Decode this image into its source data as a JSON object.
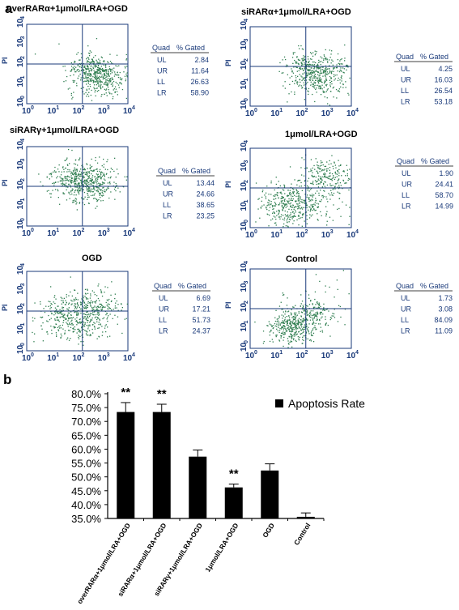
{
  "panel_a_label": "a",
  "panel_b_label": "b",
  "flow_axis": {
    "y_label": "PI",
    "tick_base": "10",
    "tick_exponents": [
      "0",
      "1",
      "2",
      "3",
      "4"
    ]
  },
  "quad_table_header": {
    "quad": "Quad",
    "gated": "% Gated"
  },
  "flow_panels": [
    {
      "title": "overRARα+1μmol/LRA+OGD",
      "rows": [
        {
          "q": "UL",
          "v": "2.84"
        },
        {
          "q": "UR",
          "v": "11.64"
        },
        {
          "q": "LL",
          "v": "26.63"
        },
        {
          "q": "LR",
          "v": "58.90"
        }
      ]
    },
    {
      "title": "siRARα+1μmol/LRA+OGD",
      "rows": [
        {
          "q": "UL",
          "v": "4.25"
        },
        {
          "q": "UR",
          "v": "16.03"
        },
        {
          "q": "LL",
          "v": "26.54"
        },
        {
          "q": "LR",
          "v": "53.18"
        }
      ]
    },
    {
      "title": "siRARγ+1μmol/LRA+OGD",
      "rows": [
        {
          "q": "UL",
          "v": "13.44"
        },
        {
          "q": "UR",
          "v": "24.66"
        },
        {
          "q": "LL",
          "v": "38.65"
        },
        {
          "q": "LR",
          "v": "23.25"
        }
      ]
    },
    {
      "title": "1μmol/LRA+OGD",
      "rows": [
        {
          "q": "UL",
          "v": "1.90"
        },
        {
          "q": "UR",
          "v": "24.41"
        },
        {
          "q": "LL",
          "v": "58.70"
        },
        {
          "q": "LR",
          "v": "14.99"
        }
      ]
    },
    {
      "title": "OGD",
      "rows": [
        {
          "q": "UL",
          "v": "6.69"
        },
        {
          "q": "UR",
          "v": "17.21"
        },
        {
          "q": "LL",
          "v": "51.73"
        },
        {
          "q": "LR",
          "v": "24.37"
        }
      ]
    },
    {
      "title": "Control",
      "rows": [
        {
          "q": "UL",
          "v": "1.73"
        },
        {
          "q": "UR",
          "v": "3.08"
        },
        {
          "q": "LL",
          "v": "84.09"
        },
        {
          "q": "LR",
          "v": "11.09"
        }
      ]
    }
  ],
  "colors": {
    "dots": "#2e7d4f",
    "axis_text": "#1a3a7a",
    "bar": "#000000"
  },
  "chart_data": {
    "type": "bar",
    "title": "",
    "xlabel": "",
    "ylabel": "",
    "legend": "Apoptosis Rate",
    "legend_position": "top-right",
    "ylim": [
      35,
      80
    ],
    "y_ticks": [
      80,
      75,
      70,
      65,
      60,
      55,
      50,
      45,
      40,
      35
    ],
    "y_tick_labels": [
      "80.0%",
      "75.0%",
      "70.0%",
      "65.0%",
      "60.0%",
      "55.0%",
      "50.0%",
      "45.0%",
      "40.0%",
      "35.0%"
    ],
    "categories": [
      "overRARα+1μmol/LRA+OGD",
      "siRARα+1μmol/LRA+OGD",
      "siRARγ+1μmol/LRA+OGD",
      "1μmol/LRA+OGD",
      "OGD",
      "Control"
    ],
    "series": [
      {
        "name": "Apoptosis Rate",
        "values": [
          73.4,
          73.4,
          57.3,
          46.2,
          52.3,
          35.6
        ],
        "errors": [
          3.4,
          2.8,
          2.4,
          1.2,
          2.4,
          1.4
        ]
      }
    ],
    "annotations": [
      "**",
      "**",
      "",
      "**",
      "",
      ""
    ],
    "grid": false
  }
}
